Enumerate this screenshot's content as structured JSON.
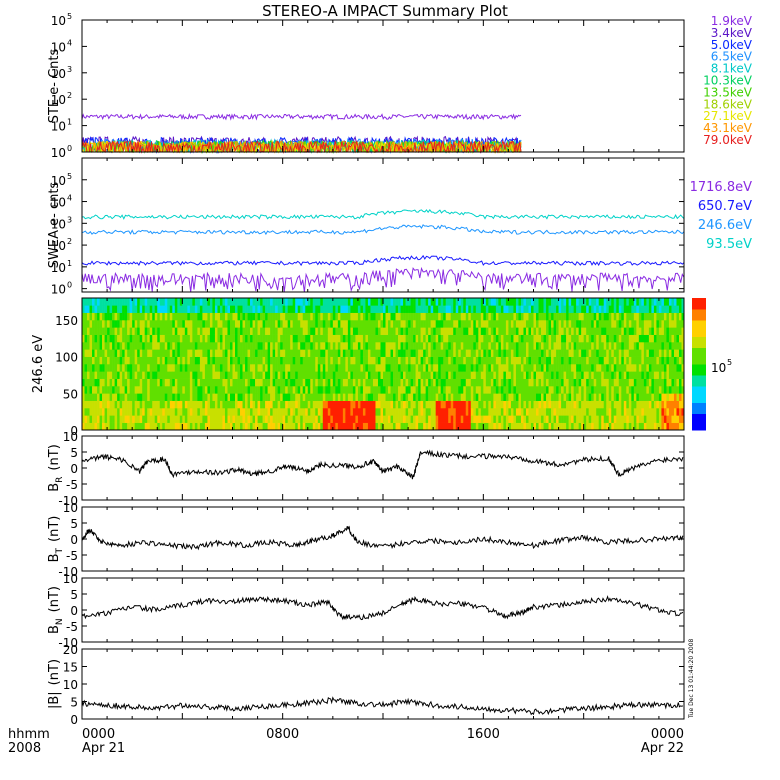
{
  "title": "STEREO-A IMPACT Summary Plot",
  "footer": {
    "row1_label": "hhmm",
    "row2_label": "2008",
    "ticks": [
      {
        "time": "0000",
        "date": "Apr 21"
      },
      {
        "time": "0800",
        "date": ""
      },
      {
        "time": "1600",
        "date": ""
      },
      {
        "time": "0000",
        "date": "Apr 22"
      }
    ]
  },
  "timestamp": "Tue Dec 13 01:44:20 2008",
  "chart_data": [
    {
      "id": "ste",
      "type": "line",
      "ylabel": "STE e- Cnts",
      "yscale": "log",
      "ylim": [
        1,
        100000
      ],
      "yticks": [
        "10",
        "10",
        "10",
        "10",
        "10",
        "10"
      ],
      "yexps": [
        "0",
        "1",
        "2",
        "3",
        "4",
        "5"
      ],
      "xlim_hours": [
        0,
        24
      ],
      "data_end_hours": 17.5,
      "legend_position": "right",
      "series": [
        {
          "name": "1.9keV",
          "color": "#8a2be2",
          "level": 22
        },
        {
          "name": "3.4keV",
          "color": "#5a14c8",
          "level": 1.5
        },
        {
          "name": "5.0keV",
          "color": "#0a28ff",
          "level": 1.4
        },
        {
          "name": "6.5keV",
          "color": "#1e90ff",
          "level": 1.2
        },
        {
          "name": "8.1keV",
          "color": "#00c8c8",
          "level": 1.1
        },
        {
          "name": "10.3keV",
          "color": "#00d060",
          "level": 1.05
        },
        {
          "name": "13.5keV",
          "color": "#40d000",
          "level": 1.02
        },
        {
          "name": "18.6keV",
          "color": "#a0d000",
          "level": 1.0
        },
        {
          "name": "27.1keV",
          "color": "#e6e600",
          "level": 1.0
        },
        {
          "name": "43.1keV",
          "color": "#ff9600",
          "level": 1.0
        },
        {
          "name": "79.0keV",
          "color": "#e62020",
          "level": 1.0
        }
      ]
    },
    {
      "id": "swea",
      "type": "line",
      "ylabel": "SWEA e- cnts",
      "yscale": "log",
      "ylim": [
        0.7,
        1000000
      ],
      "yticks": [
        "10",
        "10",
        "10",
        "10",
        "10",
        "10"
      ],
      "yexps": [
        "0",
        "1",
        "2",
        "3",
        "4",
        "5"
      ],
      "xlim_hours": [
        0,
        24
      ],
      "legend_position": "right",
      "series": [
        {
          "name": "1716.8eV",
          "color": "#8a2be2",
          "level": 2
        },
        {
          "name": "650.7eV",
          "color": "#1a1aff",
          "level": 15
        },
        {
          "name": "246.6eV",
          "color": "#1e96ff",
          "level": 400
        },
        {
          "name": "93.5eV",
          "color": "#00d2c8",
          "level": 2000
        }
      ]
    },
    {
      "id": "pad",
      "type": "heatmap",
      "ylabel": "246.6 eV",
      "ylim": [
        0,
        180
      ],
      "yticks": [
        "0",
        "50",
        "100",
        "150"
      ],
      "ytick_values": [
        0,
        50,
        100,
        150
      ],
      "xlim_hours": [
        0,
        24
      ],
      "colorbar_label": "10",
      "colorbar_exp": "5"
    },
    {
      "id": "br",
      "type": "line",
      "ylabel": "B",
      "ylabel_sub": "R",
      "ylabel_unit": "(nT)",
      "ylim": [
        -10,
        10
      ],
      "yticks": [
        "-10",
        "-5",
        "0",
        "5",
        "10"
      ],
      "ytick_values": [
        -10,
        -5,
        0,
        5,
        10
      ],
      "xlim_hours": [
        0,
        24
      ],
      "series": [
        {
          "name": "",
          "color": "#000000",
          "points": [
            [
              0,
              2
            ],
            [
              0.8,
              3.5
            ],
            [
              1.5,
              3
            ],
            [
              2.3,
              -1
            ],
            [
              2.6,
              2
            ],
            [
              3.3,
              2.8
            ],
            [
              3.6,
              -2
            ],
            [
              4.5,
              -1
            ],
            [
              5.5,
              -1.5
            ],
            [
              6.2,
              -0.5
            ],
            [
              6.8,
              -2
            ],
            [
              7.5,
              -1
            ],
            [
              8.2,
              0.5
            ],
            [
              9,
              -1
            ],
            [
              9.5,
              1
            ],
            [
              10.2,
              0.8
            ],
            [
              11,
              0.5
            ],
            [
              11.6,
              2
            ],
            [
              12,
              -1
            ],
            [
              12.6,
              0.5
            ],
            [
              13.2,
              -3
            ],
            [
              13.5,
              4.8
            ],
            [
              14.5,
              4
            ],
            [
              15.5,
              3.5
            ],
            [
              16.5,
              3.8
            ],
            [
              17.5,
              3
            ],
            [
              18.2,
              2
            ],
            [
              19,
              1
            ],
            [
              20,
              2.5
            ],
            [
              21,
              3
            ],
            [
              21.4,
              -2
            ],
            [
              22,
              0
            ],
            [
              23,
              2.5
            ],
            [
              24,
              3
            ]
          ]
        }
      ]
    },
    {
      "id": "bt",
      "type": "line",
      "ylabel": "B",
      "ylabel_sub": "T",
      "ylabel_unit": "(nT)",
      "ylim": [
        -10,
        10
      ],
      "yticks": [
        "-10",
        "-5",
        "0",
        "5",
        "10"
      ],
      "ytick_values": [
        -10,
        -5,
        0,
        5,
        10
      ],
      "xlim_hours": [
        0,
        24
      ],
      "series": [
        {
          "name": "",
          "color": "#000000",
          "points": [
            [
              0,
              0
            ],
            [
              0.3,
              3
            ],
            [
              0.8,
              -1
            ],
            [
              1.5,
              -2
            ],
            [
              2.5,
              -1
            ],
            [
              3.5,
              -2
            ],
            [
              4.5,
              -2.5
            ],
            [
              5.5,
              -1
            ],
            [
              6.5,
              -2
            ],
            [
              7.5,
              -1
            ],
            [
              8.5,
              -2
            ],
            [
              9.2,
              -0.5
            ],
            [
              10,
              1
            ],
            [
              10.6,
              3.5
            ],
            [
              11,
              -1
            ],
            [
              12,
              -2.5
            ],
            [
              13,
              -1
            ],
            [
              14,
              -0.5
            ],
            [
              15,
              -1
            ],
            [
              16,
              0
            ],
            [
              17,
              -1
            ],
            [
              18,
              -2
            ],
            [
              19,
              -0.5
            ],
            [
              20,
              0.5
            ],
            [
              21,
              -1
            ],
            [
              22,
              -0.5
            ],
            [
              23,
              0
            ],
            [
              24,
              0.5
            ]
          ]
        }
      ]
    },
    {
      "id": "bn",
      "type": "line",
      "ylabel": "B",
      "ylabel_sub": "N",
      "ylabel_unit": "(nT)",
      "ylim": [
        -10,
        10
      ],
      "yticks": [
        "-10",
        "-5",
        "0",
        "5",
        "10"
      ],
      "ytick_values": [
        -10,
        -5,
        0,
        5,
        10
      ],
      "xlim_hours": [
        0,
        24
      ],
      "series": [
        {
          "name": "",
          "color": "#000000",
          "points": [
            [
              0,
              -2
            ],
            [
              1,
              -1
            ],
            [
              2,
              1
            ],
            [
              3,
              0
            ],
            [
              4,
              1.5
            ],
            [
              5,
              3
            ],
            [
              6,
              2.5
            ],
            [
              7,
              3.5
            ],
            [
              8,
              3
            ],
            [
              9,
              1.5
            ],
            [
              9.8,
              2.5
            ],
            [
              10.3,
              -2
            ],
            [
              11,
              -2.5
            ],
            [
              12,
              -1
            ],
            [
              12.8,
              2
            ],
            [
              13.3,
              3.5
            ],
            [
              14,
              2
            ],
            [
              15,
              2
            ],
            [
              16,
              1
            ],
            [
              16.8,
              -2
            ],
            [
              17.5,
              -1
            ],
            [
              18,
              1
            ],
            [
              19,
              1.5
            ],
            [
              20,
              2.5
            ],
            [
              21,
              3.5
            ],
            [
              22,
              2
            ],
            [
              23,
              0
            ],
            [
              24,
              -1.5
            ]
          ]
        }
      ]
    },
    {
      "id": "bmag",
      "type": "line",
      "ylabel": "|B|",
      "ylabel_sub": "",
      "ylabel_unit": "(nT)",
      "ylim": [
        0,
        20
      ],
      "yticks": [
        "0",
        "5",
        "10",
        "15",
        "20"
      ],
      "ytick_values": [
        0,
        5,
        10,
        15,
        20
      ],
      "xlim_hours": [
        0,
        24
      ],
      "series": [
        {
          "name": "",
          "color": "#000000",
          "points": [
            [
              0,
              4.5
            ],
            [
              1,
              4
            ],
            [
              2,
              3.5
            ],
            [
              3,
              3
            ],
            [
              4,
              4
            ],
            [
              5,
              3.5
            ],
            [
              6,
              3
            ],
            [
              7,
              3.5
            ],
            [
              8,
              4
            ],
            [
              9,
              4.5
            ],
            [
              10,
              5.5
            ],
            [
              11,
              4.5
            ],
            [
              12,
              4
            ],
            [
              13,
              5
            ],
            [
              14,
              4
            ],
            [
              15,
              3.5
            ],
            [
              16,
              3
            ],
            [
              17,
              2.5
            ],
            [
              18,
              2
            ],
            [
              19,
              2.5
            ],
            [
              20,
              3
            ],
            [
              21,
              3.5
            ],
            [
              22,
              4
            ],
            [
              23,
              4
            ],
            [
              24,
              4
            ]
          ]
        }
      ]
    }
  ]
}
